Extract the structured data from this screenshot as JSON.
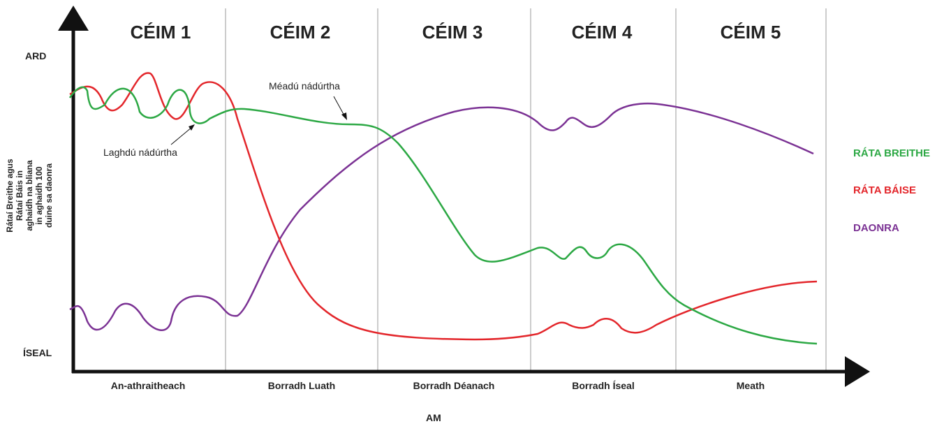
{
  "stages": [
    {
      "title": "CÉIM 1",
      "label": "An-athraitheach"
    },
    {
      "title": "CÉIM 2",
      "label": "Borradh Luath"
    },
    {
      "title": "CÉIM 3",
      "label": "Borradh Déanach"
    },
    {
      "title": "CÉIM 4",
      "label": "Borradh Íseal"
    },
    {
      "title": "CÉIM 5",
      "label": "Meath"
    }
  ],
  "y_axis": {
    "title": [
      "Rátaí Breithe agus",
      "Rátaí Báis in",
      "aghaidh na bliana",
      "in aghaidh 100",
      "duine sa daonra"
    ],
    "high": "ARD",
    "low": "ÍSEAL"
  },
  "x_axis": {
    "title": "AM"
  },
  "legend": [
    "RÁTA BREITHE",
    "RÁTA BÁISE",
    "DAONRA"
  ],
  "annotations": [
    "Méadú nádúrtha",
    "Laghdú nádúrtha"
  ]
}
